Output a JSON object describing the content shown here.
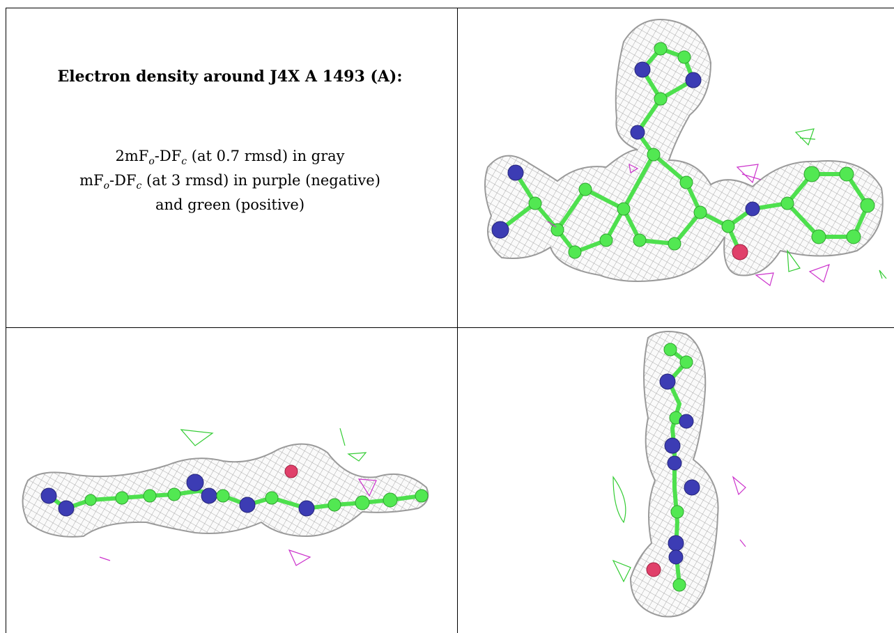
{
  "title": "Electron density around J4X A 1493 (A):",
  "legend": {
    "lines": [
      [
        "2mF",
        "o",
        "-DF",
        "c",
        " (at 0.7 rmsd) in gray"
      ],
      [
        "mF",
        "o",
        "-DF",
        "c",
        " (at 3 rmsd) in purple (negative)"
      ],
      [
        "and green (positive)"
      ]
    ]
  }
}
